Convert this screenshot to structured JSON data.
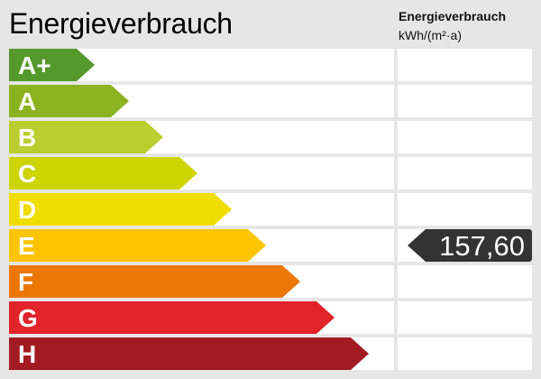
{
  "title": "Energieverbrauch",
  "column_header": {
    "line1": "Energieverbrauch",
    "line2": "kWh/(m²·a)"
  },
  "classes": [
    {
      "label": "A+",
      "color": "#55992b"
    },
    {
      "label": "A",
      "color": "#8bb320"
    },
    {
      "label": "B",
      "color": "#bace2f"
    },
    {
      "label": "C",
      "color": "#ced400"
    },
    {
      "label": "D",
      "color": "#f0dd00"
    },
    {
      "label": "E",
      "color": "#fdc500"
    },
    {
      "label": "F",
      "color": "#ec7705"
    },
    {
      "label": "G",
      "color": "#e2232a"
    },
    {
      "label": "H",
      "color": "#a31b22"
    }
  ],
  "value": {
    "text": "157,60",
    "class": "E"
  }
}
